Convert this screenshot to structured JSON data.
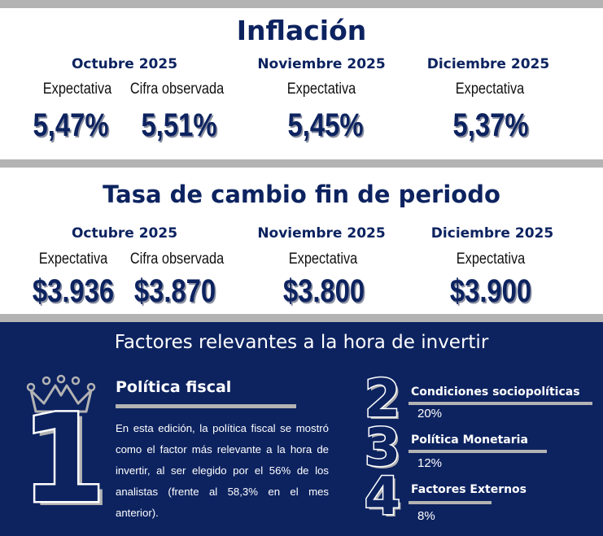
{
  "inflacion": {
    "title": "Inflación",
    "months": [
      {
        "month": "Octubre 2025",
        "entries": [
          {
            "label": "Expectativa",
            "value": "5,47%"
          },
          {
            "label": "Cifra observada",
            "value": "5,51%"
          }
        ]
      },
      {
        "month": "Noviembre 2025",
        "entries": [
          {
            "label": "Expectativa",
            "value": "5,45%"
          }
        ]
      },
      {
        "month": "Diciembre 2025",
        "entries": [
          {
            "label": "Expectativa",
            "value": "5,37%"
          }
        ]
      }
    ]
  },
  "tasa_cambio": {
    "title": "Tasa de cambio fin de periodo",
    "months": [
      {
        "month": "Octubre 2025",
        "entries": [
          {
            "label": "Expectativa",
            "value": "$3.936"
          },
          {
            "label": "Cifra observada",
            "value": "$3.870"
          }
        ]
      },
      {
        "month": "Noviembre 2025",
        "entries": [
          {
            "label": "Expectativa",
            "value": "$3.800"
          }
        ]
      },
      {
        "month": "Diciembre 2025",
        "entries": [
          {
            "label": "Expectativa",
            "value": "$3.900"
          }
        ]
      }
    ]
  },
  "factores": {
    "title": "Factores relevantes a la hora de invertir",
    "top": {
      "rank": "1",
      "title": "Política fiscal",
      "text": "En esta edición, la política fiscal se mostró como el factor más relevante a la hora de invertir, al ser elegido por el 56% de los analistas (frente al 58,3% en el mes anterior)."
    },
    "others": [
      {
        "rank": "2",
        "label": "Condiciones sociopolíticas",
        "pct": "20%"
      },
      {
        "rank": "3",
        "label": "Política Monetaria",
        "pct": "12%"
      },
      {
        "rank": "4",
        "label": "Factores Externos",
        "pct": "8%"
      }
    ]
  },
  "colors": {
    "navy": "#0d2360",
    "gray": "#b3b3b3",
    "white": "#ffffff"
  },
  "icons": [
    "crown-icon"
  ]
}
